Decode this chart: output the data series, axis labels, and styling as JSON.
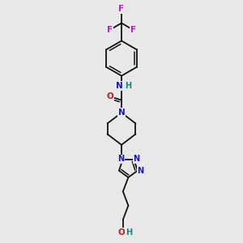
{
  "bg": "#e8e8e8",
  "bond_color": "#111111",
  "bw": 1.3,
  "colors": {
    "N": "#1515cc",
    "O": "#cc1515",
    "F": "#cc11cc",
    "teal": "#118888",
    "C": "#111111"
  },
  "figsize": [
    3.0,
    3.0
  ],
  "dpi": 100,
  "xlim": [
    0,
    10
  ],
  "ylim": [
    0,
    10
  ]
}
